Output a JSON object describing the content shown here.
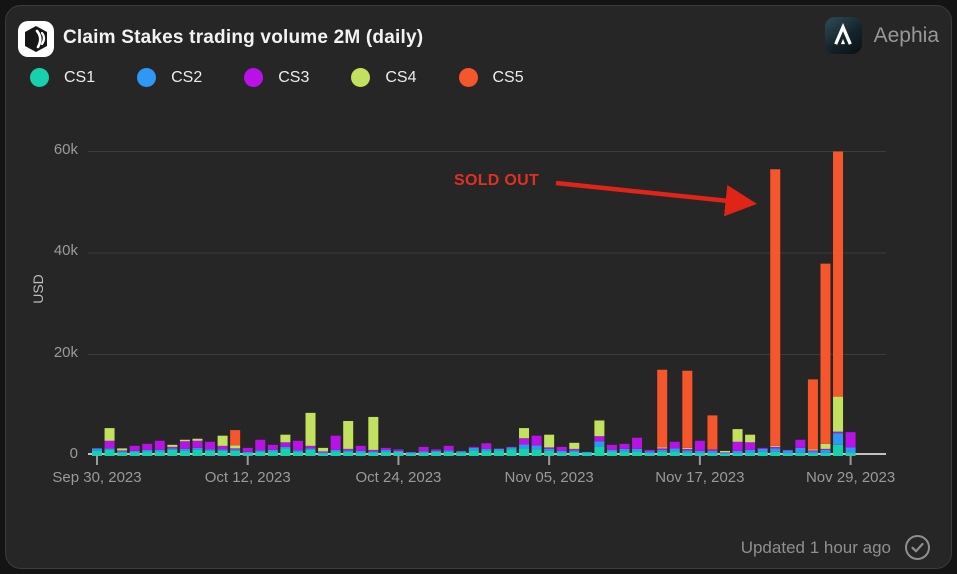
{
  "header": {
    "title": "Claim Stakes trading volume 2M (daily)",
    "brand": "Aephia"
  },
  "annotation": {
    "text": "SOLD OUT",
    "color": "#e03024",
    "points_to": "Nov 23, 2023 orange bar"
  },
  "footer": {
    "updated": "Updated 1 hour ago"
  },
  "colors": {
    "card_background": "#262626",
    "page_background": "#141414",
    "grid": "#3c3c3e",
    "baseline": "#c2c2c2",
    "tick_text": "#9a9a9a",
    "title_text": "#f2f2f2"
  },
  "chart_data": {
    "type": "bar",
    "stacked": true,
    "title": "Claim Stakes trading volume 2M (daily)",
    "ylabel": "USD",
    "ylim": [
      0,
      62000
    ],
    "grid": true,
    "legend_position": "top",
    "yticks": [
      0,
      20000,
      40000,
      60000
    ],
    "ytick_labels": [
      "0",
      "20k",
      "40k",
      "60k"
    ],
    "xtick_day_indices": [
      0,
      12,
      24,
      36,
      48,
      60
    ],
    "xtick_labels": [
      "Sep 30, 2023",
      "Oct 12, 2023",
      "Oct 24, 2023",
      "Nov 05, 2023",
      "Nov 17, 2023",
      "Nov 29, 2023"
    ],
    "categories": [
      "Sep 30",
      "Oct 1",
      "Oct 2",
      "Oct 3",
      "Oct 4",
      "Oct 5",
      "Oct 6",
      "Oct 7",
      "Oct 8",
      "Oct 9",
      "Oct 10",
      "Oct 11",
      "Oct 12",
      "Oct 13",
      "Oct 14",
      "Oct 15",
      "Oct 16",
      "Oct 17",
      "Oct 18",
      "Oct 19",
      "Oct 20",
      "Oct 21",
      "Oct 22",
      "Oct 23",
      "Oct 24",
      "Oct 25",
      "Oct 26",
      "Oct 27",
      "Oct 28",
      "Oct 29",
      "Oct 30",
      "Oct 31",
      "Nov 1",
      "Nov 2",
      "Nov 3",
      "Nov 4",
      "Nov 5",
      "Nov 6",
      "Nov 7",
      "Nov 8",
      "Nov 9",
      "Nov 10",
      "Nov 11",
      "Nov 12",
      "Nov 13",
      "Nov 14",
      "Nov 15",
      "Nov 16",
      "Nov 17",
      "Nov 18",
      "Nov 19",
      "Nov 20",
      "Nov 21",
      "Nov 22",
      "Nov 23",
      "Nov 24",
      "Nov 25",
      "Nov 26",
      "Nov 27",
      "Nov 28",
      "Nov 29"
    ],
    "series": [
      {
        "name": "CS1",
        "color": "#17d0ac",
        "values": [
          1000,
          1200,
          700,
          800,
          900,
          900,
          1200,
          1000,
          1200,
          1000,
          1000,
          1000,
          600,
          800,
          900,
          1500,
          800,
          1200,
          500,
          900,
          800,
          700,
          700,
          800,
          800,
          500,
          700,
          800,
          800,
          700,
          1100,
          1000,
          1100,
          1300,
          1500,
          1300,
          1000,
          700,
          800,
          600,
          1900,
          900,
          900,
          900,
          600,
          800,
          900,
          700,
          600,
          600,
          400,
          500,
          700,
          800,
          800,
          500,
          600,
          500,
          600,
          2200,
          700
        ]
      },
      {
        "name": "CS2",
        "color": "#3097f3",
        "values": [
          500,
          300,
          200,
          200,
          300,
          300,
          300,
          400,
          400,
          300,
          300,
          300,
          200,
          300,
          300,
          300,
          300,
          300,
          200,
          300,
          300,
          300,
          200,
          400,
          200,
          200,
          200,
          200,
          300,
          200,
          500,
          400,
          300,
          400,
          800,
          800,
          400,
          300,
          300,
          200,
          1000,
          300,
          500,
          500,
          300,
          400,
          600,
          400,
          400,
          400,
          200,
          500,
          500,
          600,
          700,
          600,
          1000,
          400,
          600,
          2300,
          1000
        ]
      },
      {
        "name": "CS3",
        "color": "#b812e6",
        "values": [
          0,
          1500,
          200,
          1000,
          1200,
          1800,
          300,
          1500,
          1400,
          1500,
          700,
          200,
          800,
          2100,
          1000,
          900,
          1900,
          500,
          200,
          2800,
          300,
          1000,
          300,
          400,
          300,
          100,
          900,
          300,
          900,
          100,
          200,
          1100,
          100,
          100,
          1200,
          1900,
          300,
          800,
          300,
          0,
          1000,
          1000,
          1000,
          2200,
          300,
          300,
          1300,
          300,
          2000,
          300,
          100,
          1800,
          1500,
          200,
          300,
          100,
          1600,
          200,
          200,
          300,
          3000
        ]
      },
      {
        "name": "CS4",
        "color": "#c2e15e",
        "values": [
          0,
          2500,
          400,
          0,
          0,
          0,
          400,
          300,
          400,
          0,
          2000,
          600,
          0,
          0,
          0,
          1500,
          0,
          6500,
          700,
          0,
          5500,
          0,
          6500,
          0,
          0,
          0,
          0,
          0,
          0,
          0,
          0,
          0,
          0,
          0,
          2000,
          0,
          2500,
          0,
          1200,
          0,
          3100,
          0,
          0,
          0,
          0,
          200,
          0,
          200,
          0,
          0,
          300,
          2500,
          1500,
          0,
          200,
          0,
          0,
          200,
          1000,
          6900,
          0
        ]
      },
      {
        "name": "CS5",
        "color": "#f5562b",
        "values": [
          0,
          0,
          0,
          0,
          0,
          0,
          0,
          0,
          0,
          0,
          0,
          3000,
          0,
          0,
          0,
          0,
          0,
          0,
          0,
          0,
          0,
          0,
          0,
          0,
          0,
          0,
          0,
          0,
          0,
          0,
          0,
          0,
          0,
          0,
          0,
          0,
          0,
          0,
          0,
          0,
          0,
          0,
          0,
          0,
          0,
          15300,
          0,
          15200,
          0,
          6700,
          0,
          0,
          0,
          0,
          54500,
          0,
          0,
          13800,
          35500,
          48300,
          0
        ]
      }
    ]
  }
}
